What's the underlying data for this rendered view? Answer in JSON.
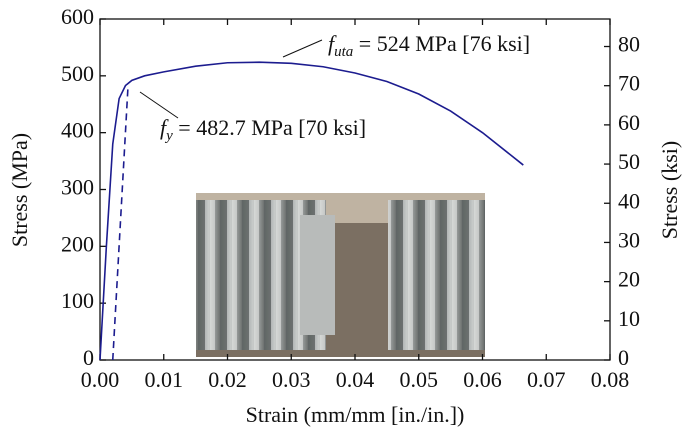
{
  "chart_data": {
    "type": "line",
    "xlabel": "Strain (mm/mm [in./in.])",
    "ylabel": "Stress (MPa)",
    "y2label": "Stress (ksi)",
    "xlim": [
      0,
      0.08
    ],
    "xticks": [
      {
        "value": 0,
        "label": "0.00"
      },
      {
        "value": 0.01,
        "label": "0.01"
      },
      {
        "value": 0.02,
        "label": "0.02"
      },
      {
        "value": 0.03,
        "label": "0.03"
      },
      {
        "value": 0.04,
        "label": "0.04"
      },
      {
        "value": 0.05,
        "label": "0.05"
      },
      {
        "value": 0.06,
        "label": "0.06"
      },
      {
        "value": 0.07,
        "label": "0.07"
      },
      {
        "value": 0.08,
        "label": "0.08"
      }
    ],
    "ylim": [
      0,
      600
    ],
    "yticks": [
      0,
      100,
      200,
      300,
      400,
      500,
      600
    ],
    "y2lim": [
      0,
      87.02
    ],
    "y2ticks": [
      0,
      10,
      20,
      30,
      40,
      50,
      60,
      70,
      80
    ],
    "series": [
      {
        "color": "#1c1c8f",
        "dashed": false,
        "x": [
          0,
          0.001,
          0.002,
          0.003,
          0.004,
          0.005,
          0.007,
          0.01,
          0.015,
          0.02,
          0.025,
          0.03,
          0.035,
          0.04,
          0.045,
          0.05,
          0.055,
          0.06,
          0.0664
        ],
        "values": [
          0,
          200,
          380,
          460,
          483,
          492,
          500,
          507,
          517,
          523,
          524,
          522,
          516,
          505,
          490,
          468,
          438,
          400,
          343
        ]
      },
      {
        "color": "#1c1c8f",
        "dashed": true,
        "x": [
          0.002,
          0.0044
        ],
        "values": [
          0,
          482.7
        ]
      }
    ],
    "annotations": [
      {
        "symbol": "f",
        "subscript": "uta",
        "text": " = 524 MPa [76 ksi]"
      },
      {
        "symbol": "f",
        "subscript": "y",
        "text": " = 482.7 MPa [70 ksi]"
      }
    ]
  }
}
